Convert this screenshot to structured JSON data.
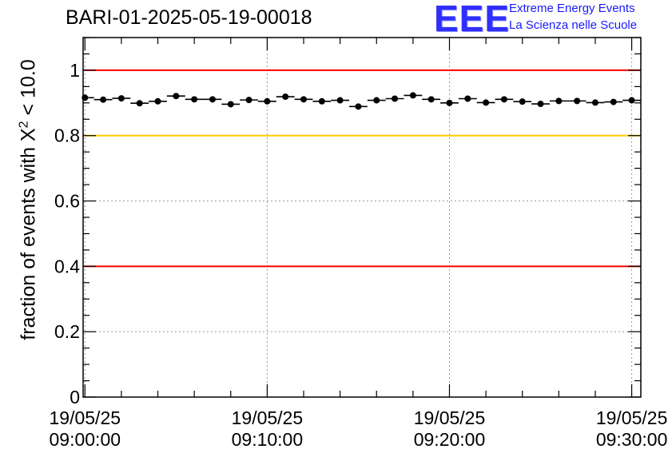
{
  "chart_data": {
    "type": "scatter",
    "title": "BARI-01-2025-05-19-00018",
    "ylabel_prefix": "fraction of events with X",
    "ylabel_sup": "2",
    "ylabel_suffix": " < 10.0",
    "xlabel": "",
    "ylim": [
      0,
      1.1
    ],
    "yticks": [
      0,
      0.2,
      0.4,
      0.6,
      0.8,
      1
    ],
    "yticklabels": [
      "0",
      "0.2",
      "0.4",
      "0.6",
      "0.8",
      "1"
    ],
    "xlim_minutes": [
      -0.1,
      30.5
    ],
    "xticks_minutes": [
      0,
      10,
      20,
      30
    ],
    "xticklabels": [
      {
        "date": "19/05/25",
        "time": "09:00:00"
      },
      {
        "date": "19/05/25",
        "time": "09:10:00"
      },
      {
        "date": "19/05/25",
        "time": "09:20:00"
      },
      {
        "date": "19/05/25",
        "time": "09:30:00"
      }
    ],
    "bin_width_minutes": 1,
    "x_minutes": [
      0,
      1,
      2,
      3,
      4,
      5,
      6,
      7,
      8,
      9,
      10,
      11,
      12,
      13,
      14,
      15,
      16,
      17,
      18,
      19,
      20,
      21,
      22,
      23,
      24,
      25,
      26,
      27,
      28,
      29,
      30
    ],
    "values": [
      0.916,
      0.91,
      0.914,
      0.899,
      0.905,
      0.921,
      0.911,
      0.911,
      0.896,
      0.909,
      0.905,
      0.919,
      0.911,
      0.905,
      0.908,
      0.889,
      0.908,
      0.913,
      0.923,
      0.911,
      0.9,
      0.913,
      0.901,
      0.911,
      0.904,
      0.897,
      0.906,
      0.906,
      0.901,
      0.903,
      0.908
    ],
    "reference_lines": [
      {
        "value": 1.0,
        "color": "#ff0000"
      },
      {
        "value": 0.8,
        "color": "#ffcc00"
      },
      {
        "value": 0.4,
        "color": "#ff0000"
      }
    ],
    "grid": true
  },
  "logo": {
    "text": "EEE",
    "line1": "Extreme Energy Events",
    "line2": "La Scienza nelle Scuole"
  }
}
